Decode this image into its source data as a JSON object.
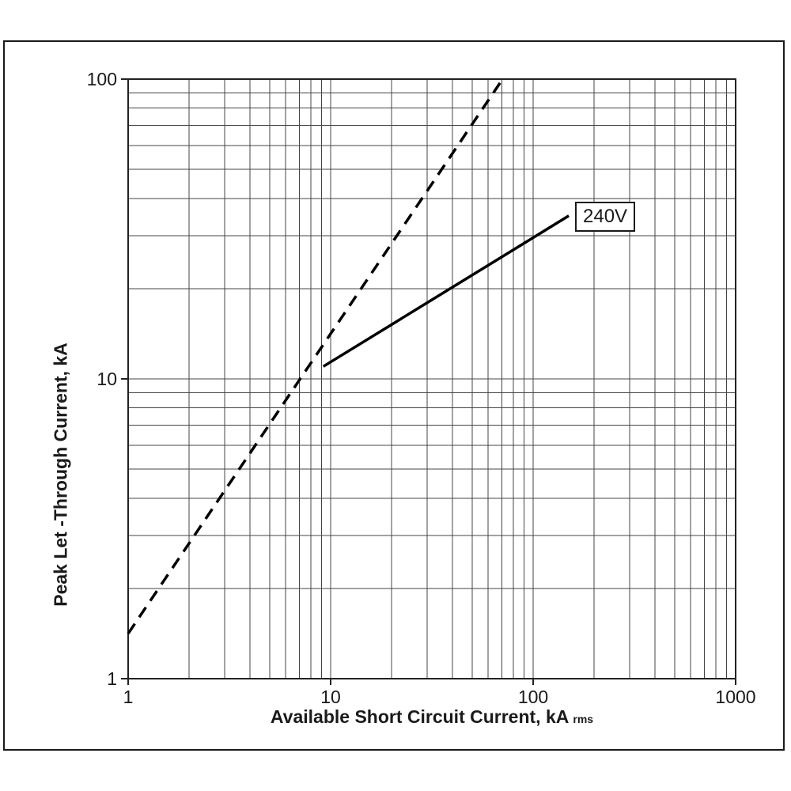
{
  "figure": {
    "background": "#ffffff",
    "border_color": "#1a1a1a",
    "line_color": "#000000",
    "grid_color": "#444444"
  },
  "chart_data": {
    "type": "line",
    "title": "",
    "xlabel": "Available Short Circuit Current, kA",
    "xlabel_subscript": "rms",
    "ylabel": "Peak Let -Through Current, kA",
    "x_scale": "log",
    "y_scale": "log",
    "xlim": [
      1,
      1000
    ],
    "ylim": [
      1,
      100
    ],
    "x_ticks": [
      "1",
      "10",
      "100",
      "1000"
    ],
    "y_ticks": [
      "1",
      "10",
      "100"
    ],
    "grid": {
      "minor_log_gridlines": true,
      "color": "#444444"
    },
    "legend_position": "none",
    "series": [
      {
        "name": "peak-reference-dashed",
        "style": "dashed",
        "color": "#000000",
        "points": [
          [
            1,
            1.414
          ],
          [
            70.7,
            100
          ]
        ],
        "description": "Dashed diagonal reference line, peak = 1.414 x available rms current"
      },
      {
        "name": "let-through-240V",
        "style": "solid",
        "color": "#000000",
        "label": "240V",
        "points": [
          [
            9.2,
            11
          ],
          [
            150,
            35
          ]
        ]
      }
    ]
  }
}
